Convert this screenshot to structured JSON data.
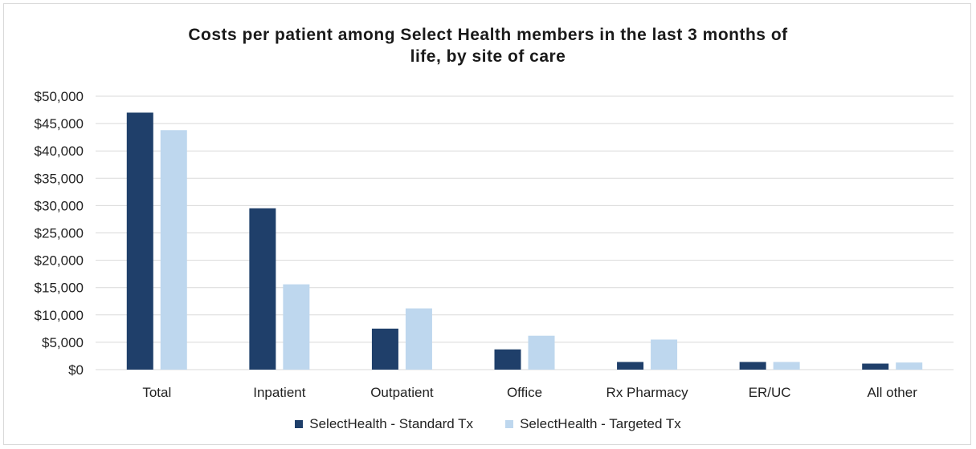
{
  "chart_data": {
    "type": "bar",
    "title_lines": [
      "Costs per patient among Select Health members in the last 3 months of",
      "life, by site of care"
    ],
    "categories": [
      "Total",
      "Inpatient",
      "Outpatient",
      "Office",
      "Rx Pharmacy",
      "ER/UC",
      "All other"
    ],
    "series": [
      {
        "name": "SelectHealth - Standard Tx",
        "color": "#1f3f6a",
        "values": [
          47000,
          29500,
          7500,
          3700,
          1400,
          1400,
          1100
        ]
      },
      {
        "name": "SelectHealth - Targeted Tx",
        "color": "#bed7ee",
        "values": [
          43800,
          15600,
          11200,
          6200,
          5500,
          1400,
          1300
        ]
      }
    ],
    "ylim": [
      0,
      50000
    ],
    "yticks": [
      "$0",
      "$5,000",
      "$10,000",
      "$15,000",
      "$20,000",
      "$25,000",
      "$30,000",
      "$35,000",
      "$40,000",
      "$45,000",
      "$50,000"
    ],
    "grid": true,
    "legend_position": "bottom",
    "gridline_color": "#d9d9d9"
  }
}
